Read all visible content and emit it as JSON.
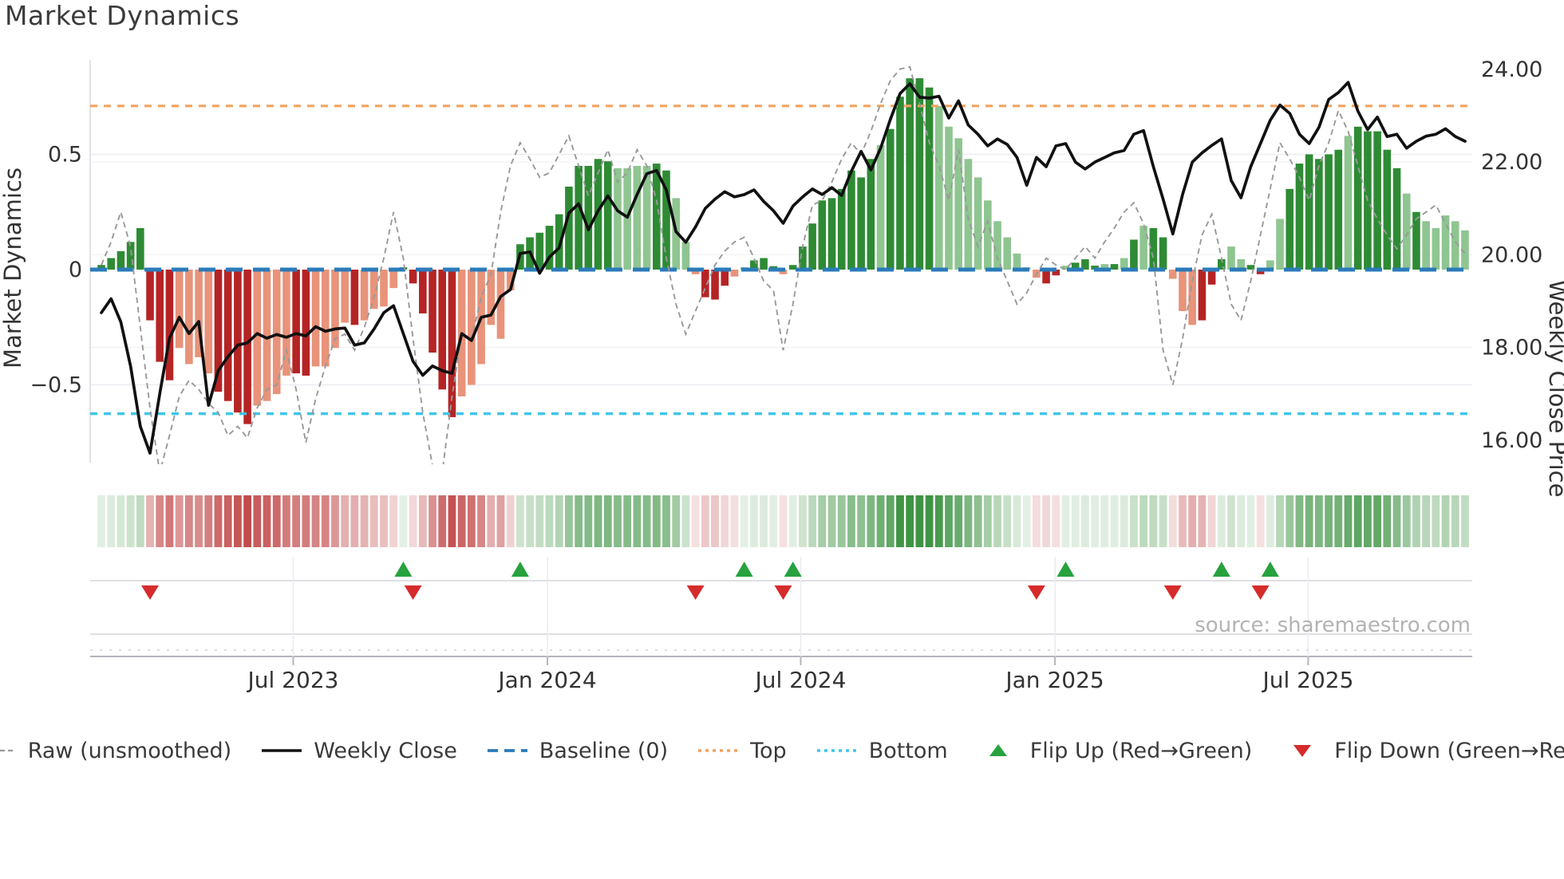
{
  "title": "Market Dynamics",
  "source_text": "source: sharemaestro.com",
  "axes": {
    "left_label": "Market Dynamics",
    "right_label": "Weekly Close Price",
    "left_ticks": [
      {
        "value": 0.5,
        "label": "0.5"
      },
      {
        "value": 0,
        "label": "0"
      },
      {
        "value": -0.5,
        "label": "−0.5"
      }
    ],
    "right_ticks": [
      {
        "value": 24,
        "label": "24.00"
      },
      {
        "value": 22,
        "label": "22.00"
      },
      {
        "value": 20,
        "label": "20.00"
      },
      {
        "value": 18,
        "label": "18.00"
      },
      {
        "value": 16,
        "label": "16.00"
      }
    ],
    "x_ticks": [
      {
        "week": 19.7,
        "label": "Jul 2023"
      },
      {
        "week": 45.8,
        "label": "Jan 2024"
      },
      {
        "week": 71.8,
        "label": "Jul 2024"
      },
      {
        "week": 97.9,
        "label": "Jan 2025"
      },
      {
        "week": 123.9,
        "label": "Jul 2025"
      }
    ]
  },
  "legend": {
    "position": "bottom-center",
    "items": [
      {
        "label": "Raw (unsmoothed)",
        "swatch": "dash-gray"
      },
      {
        "label": "Weekly Close",
        "swatch": "solid-black"
      },
      {
        "label": "Baseline (0)",
        "swatch": "dash-blue"
      },
      {
        "label": "Top",
        "swatch": "dot-orange"
      },
      {
        "label": "Bottom",
        "swatch": "dot-cyan"
      },
      {
        "label": "Flip Up (Red→Green)",
        "swatch": "tri-up"
      },
      {
        "label": "Flip Down (Green→Red)",
        "swatch": "tri-down"
      }
    ]
  },
  "colors": {
    "bar_green_dark": "#2e8b34",
    "bar_green_light": "#8fc591",
    "bar_red_dark": "#b52425",
    "bar_red_light": "#e8937a",
    "baseline_blue": "#2b7bba",
    "top_orange": "#f2a35f",
    "bottom_cyan": "#3fc6e8",
    "close_black": "#111111",
    "raw_gray": "#999999",
    "marker_green": "#27a23e",
    "marker_red": "#d62b2b",
    "grid_faint": "#ededf2",
    "panel_line": "#d5d5dc",
    "axis_line": "#b5b5bd",
    "tick_text": "#333333",
    "source_text_color": "#b3b3b3",
    "left_spine": "#d9d9e0"
  },
  "chart_data": {
    "type": "combo",
    "x_unit": "week_index",
    "weeks": 141,
    "title": "Market Dynamics",
    "left_axis_label": "Market Dynamics",
    "right_axis_label": "Weekly Close Price",
    "left_ylim": [
      -0.84,
      0.91
    ],
    "right_ylim": [
      15.5,
      24.2
    ],
    "baseline": 0,
    "top_threshold": 0.71,
    "bottom_threshold": -0.625,
    "grid": "faint-horizontal",
    "legend_position": "bottom",
    "series": [
      {
        "name": "Market Dynamics bars",
        "type": "bar",
        "axis": "left",
        "values": [
          0.02,
          0.05,
          0.08,
          0.12,
          0.18,
          -0.22,
          -0.4,
          -0.48,
          -0.34,
          -0.41,
          -0.38,
          -0.45,
          -0.53,
          -0.57,
          -0.62,
          -0.67,
          -0.59,
          -0.57,
          -0.54,
          -0.46,
          -0.45,
          -0.46,
          -0.42,
          -0.42,
          -0.34,
          -0.23,
          -0.24,
          -0.22,
          -0.17,
          -0.16,
          -0.08,
          0.01,
          -0.06,
          -0.19,
          -0.36,
          -0.52,
          -0.64,
          -0.55,
          -0.5,
          -0.41,
          -0.24,
          -0.3,
          -0.09,
          0.11,
          0.14,
          0.16,
          0.19,
          0.24,
          0.36,
          0.45,
          0.45,
          0.48,
          0.47,
          0.44,
          0.44,
          0.45,
          0.45,
          0.46,
          0.43,
          0.31,
          0.12,
          -0.02,
          -0.12,
          -0.13,
          -0.07,
          -0.03,
          0.01,
          0.04,
          0.05,
          0.015,
          -0.02,
          0.02,
          0.1,
          0.2,
          0.3,
          0.31,
          0.35,
          0.43,
          0.4,
          0.48,
          0.54,
          0.61,
          0.75,
          0.83,
          0.83,
          0.79,
          0.71,
          0.62,
          0.57,
          0.48,
          0.4,
          0.3,
          0.21,
          0.14,
          0.07,
          0.01,
          -0.035,
          -0.06,
          -0.025,
          0.017,
          0.03,
          0.045,
          0.017,
          0.024,
          0.024,
          0.05,
          0.13,
          0.19,
          0.18,
          0.14,
          -0.04,
          -0.18,
          -0.24,
          -0.22,
          -0.065,
          0.045,
          0.1,
          0.045,
          0.02,
          -0.02,
          0.04,
          0.22,
          0.35,
          0.46,
          0.5,
          0.48,
          0.5,
          0.52,
          0.58,
          0.62,
          0.6,
          0.6,
          0.52,
          0.44,
          0.33,
          0.25,
          0.21,
          0.18,
          0.235,
          0.21,
          0.17
        ],
        "shades": "ddddddddllllddddllllddlllldllllddddddllllllddddddddddllllddlllddclldddldddddddddldddddlllllllllllddldddldldlddllldddllddllddddddldddddldllllllldll"
      },
      {
        "name": "Raw (unsmoothed)",
        "type": "line",
        "axis": "left",
        "values": [
          0.02,
          0.12,
          0.25,
          0.1,
          -0.25,
          -0.6,
          -0.88,
          -0.72,
          -0.55,
          -0.48,
          -0.52,
          -0.58,
          -0.62,
          -0.72,
          -0.68,
          -0.73,
          -0.6,
          -0.52,
          -0.5,
          -0.35,
          -0.52,
          -0.75,
          -0.56,
          -0.42,
          -0.3,
          -0.28,
          -0.35,
          -0.25,
          -0.12,
          0.05,
          0.25,
          0.05,
          -0.3,
          -0.62,
          -0.85,
          -0.88,
          -0.55,
          -0.28,
          -0.3,
          -0.12,
          -0.02,
          0.25,
          0.45,
          0.55,
          0.48,
          0.4,
          0.42,
          0.5,
          0.58,
          0.45,
          0.32,
          0.42,
          0.52,
          0.38,
          0.42,
          0.52,
          0.45,
          0.3,
          0.05,
          -0.15,
          -0.28,
          -0.18,
          -0.08,
          0.02,
          0.08,
          0.12,
          0.14,
          0.05,
          -0.05,
          -0.09,
          -0.35,
          -0.15,
          0.1,
          0.28,
          0.3,
          0.38,
          0.48,
          0.55,
          0.5,
          0.6,
          0.72,
          0.82,
          0.87,
          0.88,
          0.72,
          0.55,
          0.45,
          0.3,
          0.52,
          0.22,
          0.1,
          0.21,
          0.05,
          -0.05,
          -0.15,
          -0.1,
          -0.02,
          0.05,
          0.02,
          0.0,
          0.05,
          0.1,
          0.05,
          0.12,
          0.18,
          0.25,
          0.29,
          0.2,
          0.05,
          -0.35,
          -0.5,
          -0.3,
          -0.05,
          0.15,
          0.24,
          0.05,
          -0.15,
          -0.22,
          -0.05,
          0.15,
          0.35,
          0.55,
          0.48,
          0.4,
          0.3,
          0.45,
          0.55,
          0.69,
          0.6,
          0.45,
          0.3,
          0.22,
          0.15,
          0.09,
          0.15,
          0.22,
          0.25,
          0.28,
          0.2,
          0.12,
          0.07
        ]
      },
      {
        "name": "Weekly Close",
        "type": "line",
        "axis": "right",
        "values": [
          18.75,
          19.05,
          18.55,
          17.6,
          16.3,
          15.72,
          17.0,
          18.2,
          18.65,
          18.3,
          18.56,
          16.75,
          17.5,
          17.8,
          18.05,
          18.1,
          18.3,
          18.2,
          18.28,
          18.22,
          18.3,
          18.25,
          18.45,
          18.35,
          18.4,
          18.42,
          18.05,
          18.1,
          18.4,
          18.75,
          18.9,
          18.3,
          17.7,
          17.4,
          17.6,
          17.5,
          17.44,
          18.3,
          18.15,
          18.65,
          18.7,
          19.1,
          19.25,
          20.03,
          20.06,
          19.6,
          19.95,
          20.15,
          20.9,
          21.1,
          20.54,
          20.95,
          21.27,
          20.95,
          20.81,
          21.3,
          21.75,
          21.82,
          21.4,
          20.5,
          20.27,
          20.6,
          21.0,
          21.2,
          21.36,
          21.25,
          21.3,
          21.4,
          21.15,
          20.95,
          20.68,
          21.05,
          21.25,
          21.42,
          21.3,
          21.45,
          21.28,
          21.8,
          22.23,
          21.83,
          22.3,
          22.92,
          23.48,
          23.69,
          23.4,
          23.38,
          23.42,
          22.95,
          23.32,
          22.8,
          22.6,
          22.35,
          22.5,
          22.38,
          22.1,
          21.5,
          22.1,
          21.9,
          22.35,
          22.4,
          22.0,
          21.85,
          22.0,
          22.1,
          22.2,
          22.25,
          22.6,
          22.68,
          21.9,
          21.2,
          20.45,
          21.3,
          22.0,
          22.2,
          22.36,
          22.5,
          21.6,
          21.23,
          21.9,
          22.4,
          22.9,
          23.23,
          23.05,
          22.6,
          22.4,
          22.75,
          23.35,
          23.5,
          23.72,
          23.1,
          22.7,
          22.97,
          22.55,
          22.6,
          22.3,
          22.45,
          22.56,
          22.6,
          22.72,
          22.55,
          22.45
        ]
      }
    ],
    "flip_up_weeks": [
      31,
      43,
      66,
      71,
      99,
      115,
      120
    ],
    "flip_down_weeks": [
      5,
      32,
      61,
      70,
      96,
      110,
      119
    ],
    "heatmap": "derived: sign -> green/red, opacity proportional to |value|"
  }
}
